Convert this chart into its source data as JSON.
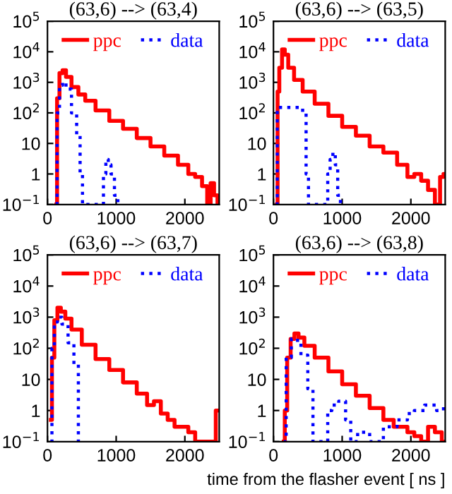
{
  "chart_data": [
    {
      "type": "step",
      "title": "(63,6) --> (63,4)",
      "log": "y",
      "xlim": [
        0,
        2500
      ],
      "ylim": [
        0.1,
        100000
      ],
      "xticks": [
        0,
        1000,
        2000
      ],
      "yticks": [
        {
          "value": 0.1,
          "label": "10$^{−1}$"
        },
        1,
        10,
        {
          "value": 100,
          "label": "10$^{2}$"
        },
        {
          "value": 1000,
          "label": "10$^{3}$"
        },
        {
          "value": 10000,
          "label": "10$^{4}$"
        },
        {
          "value": 100000,
          "label": "10$^{5}$"
        }
      ],
      "legend": "top",
      "grid": false,
      "series": [
        {
          "name": "ppc",
          "color": "#ff0000",
          "line_style": "solid",
          "x": [
            130,
            150,
            200,
            240,
            300,
            400,
            500,
            600,
            800,
            1000,
            1200,
            1400,
            1600,
            1800,
            2000,
            2100,
            2200,
            2300,
            2350,
            2400,
            2450,
            2500
          ],
          "values": [
            0.1,
            300,
            2000,
            2500,
            1500,
            700,
            400,
            250,
            120,
            55,
            30,
            15,
            8,
            4,
            2,
            1,
            0.8,
            0.4,
            0.1,
            0.5,
            0.2,
            0.1
          ]
        },
        {
          "name": "data",
          "color": "#0000ff",
          "line_style": "dotted",
          "x": [
            130,
            150,
            200,
            240,
            300,
            400,
            450,
            500,
            520,
            800,
            830,
            870,
            900,
            950,
            1000,
            1050
          ],
          "values": [
            0.1,
            100,
            800,
            1000,
            600,
            100,
            20,
            1,
            0.1,
            0.1,
            1,
            3,
            2,
            1,
            0.2,
            0.1
          ]
        }
      ]
    },
    {
      "type": "step",
      "title": "(63,6) --> (63,5)",
      "log": "y",
      "xlim": [
        0,
        2500
      ],
      "ylim": [
        0.1,
        100000
      ],
      "xticks": [
        0,
        1000,
        2000
      ],
      "yticks": [
        {
          "value": 0.1,
          "label": "10$^{−1}$"
        },
        1,
        10,
        {
          "value": 100,
          "label": "10$^{2}$"
        },
        {
          "value": 1000,
          "label": "10$^{3}$"
        },
        {
          "value": 10000,
          "label": "10$^{4}$"
        },
        {
          "value": 100000,
          "label": "10$^{5}$"
        }
      ],
      "legend": "top",
      "grid": false,
      "series": [
        {
          "name": "ppc",
          "color": "#ff0000",
          "line_style": "solid",
          "x": [
            50,
            70,
            100,
            150,
            180,
            250,
            350,
            500,
            700,
            900,
            1100,
            1300,
            1500,
            1700,
            1900,
            2000,
            2100,
            2200,
            2300,
            2400,
            2450,
            2500
          ],
          "values": [
            0.1,
            500,
            3000,
            12000,
            8000,
            3000,
            1200,
            500,
            200,
            80,
            35,
            18,
            8,
            5,
            2,
            0.8,
            1,
            0.6,
            0.3,
            0.1,
            0.8,
            1
          ]
        },
        {
          "name": "data",
          "color": "#0000ff",
          "line_style": "dotted",
          "x": [
            40,
            70,
            100,
            400,
            450,
            500,
            520,
            780,
            800,
            850,
            880,
            920,
            950,
            1000
          ],
          "values": [
            0.1,
            150,
            150,
            150,
            100,
            1,
            0.1,
            0.1,
            1,
            3,
            5,
            2,
            0.2,
            0.1
          ]
        }
      ]
    },
    {
      "type": "step",
      "title": "(63,6) --> (63,7)",
      "log": "y",
      "xlim": [
        0,
        2500
      ],
      "ylim": [
        0.1,
        100000
      ],
      "xticks": [
        0,
        1000,
        2000
      ],
      "yticks": [
        {
          "value": 0.1,
          "label": "10$^{−1}$"
        },
        1,
        10,
        {
          "value": 100,
          "label": "10$^{2}$"
        },
        {
          "value": 1000,
          "label": "10$^{3}$"
        },
        {
          "value": 10000,
          "label": "10$^{4}$"
        },
        {
          "value": 100000,
          "label": "10$^{5}$"
        }
      ],
      "legend": "top",
      "grid": false,
      "series": [
        {
          "name": "ppc",
          "color": "#ff0000",
          "line_style": "solid",
          "x": [
            50,
            80,
            120,
            170,
            220,
            300,
            400,
            600,
            800,
            1000,
            1200,
            1400,
            1500,
            1600,
            1700,
            1800,
            1900,
            2000,
            2100,
            2200,
            2300,
            2400,
            2500
          ],
          "values": [
            0.5,
            50,
            800,
            2000,
            1500,
            900,
            400,
            130,
            45,
            20,
            8,
            3.5,
            1.5,
            2,
            0.8,
            0.5,
            0.3,
            0.3,
            0.2,
            0.1,
            0.1,
            0.1,
            1
          ]
        },
        {
          "name": "data",
          "color": "#0000ff",
          "line_style": "dotted",
          "x": [
            50,
            80,
            120,
            170,
            250,
            350,
            420,
            480
          ],
          "values": [
            0.1,
            100,
            700,
            1000,
            600,
            150,
            30,
            0.1
          ]
        }
      ]
    },
    {
      "type": "step",
      "title": "(63,6) --> (63,8)",
      "xlabel": "time from the flasher event [ ns ]",
      "log": "y",
      "xlim": [
        0,
        2500
      ],
      "ylim": [
        0.1,
        100000
      ],
      "xticks": [
        0,
        1000,
        2000
      ],
      "yticks": [
        {
          "value": 0.1,
          "label": "10$^{−1}$"
        },
        1,
        10,
        {
          "value": 100,
          "label": "10$^{2}$"
        },
        {
          "value": 1000,
          "label": "10$^{3}$"
        },
        {
          "value": 10000,
          "label": "10$^{4}$"
        },
        {
          "value": 100000,
          "label": "10$^{5}$"
        }
      ],
      "legend": "top",
      "grid": false,
      "series": [
        {
          "name": "ppc",
          "color": "#ff0000",
          "line_style": "solid",
          "x": [
            150,
            180,
            220,
            280,
            330,
            400,
            500,
            700,
            900,
            1100,
            1300,
            1500,
            1700,
            1800,
            1900,
            2000,
            2100,
            2200,
            2300,
            2400,
            2500
          ],
          "values": [
            0.1,
            1,
            50,
            200,
            300,
            220,
            120,
            50,
            18,
            7,
            3,
            1.2,
            0.5,
            0.3,
            0.3,
            0.2,
            0.15,
            0.1,
            0.3,
            0.2,
            0.1
          ]
        },
        {
          "name": "data",
          "color": "#0000ff",
          "line_style": "dotted",
          "x": [
            150,
            220,
            300,
            350,
            450,
            550,
            600,
            780,
            800,
            900,
            1000,
            1100,
            1150,
            1300,
            1500,
            1700,
            1900,
            2000,
            2100,
            2300,
            2450,
            2500
          ],
          "values": [
            0.1,
            50,
            200,
            180,
            60,
            5,
            0.1,
            0.1,
            1,
            1.5,
            2,
            0.5,
            0.1,
            0.2,
            0.1,
            0.3,
            0.5,
            0.8,
            1,
            1.5,
            1,
            1.5
          ]
        }
      ]
    }
  ]
}
